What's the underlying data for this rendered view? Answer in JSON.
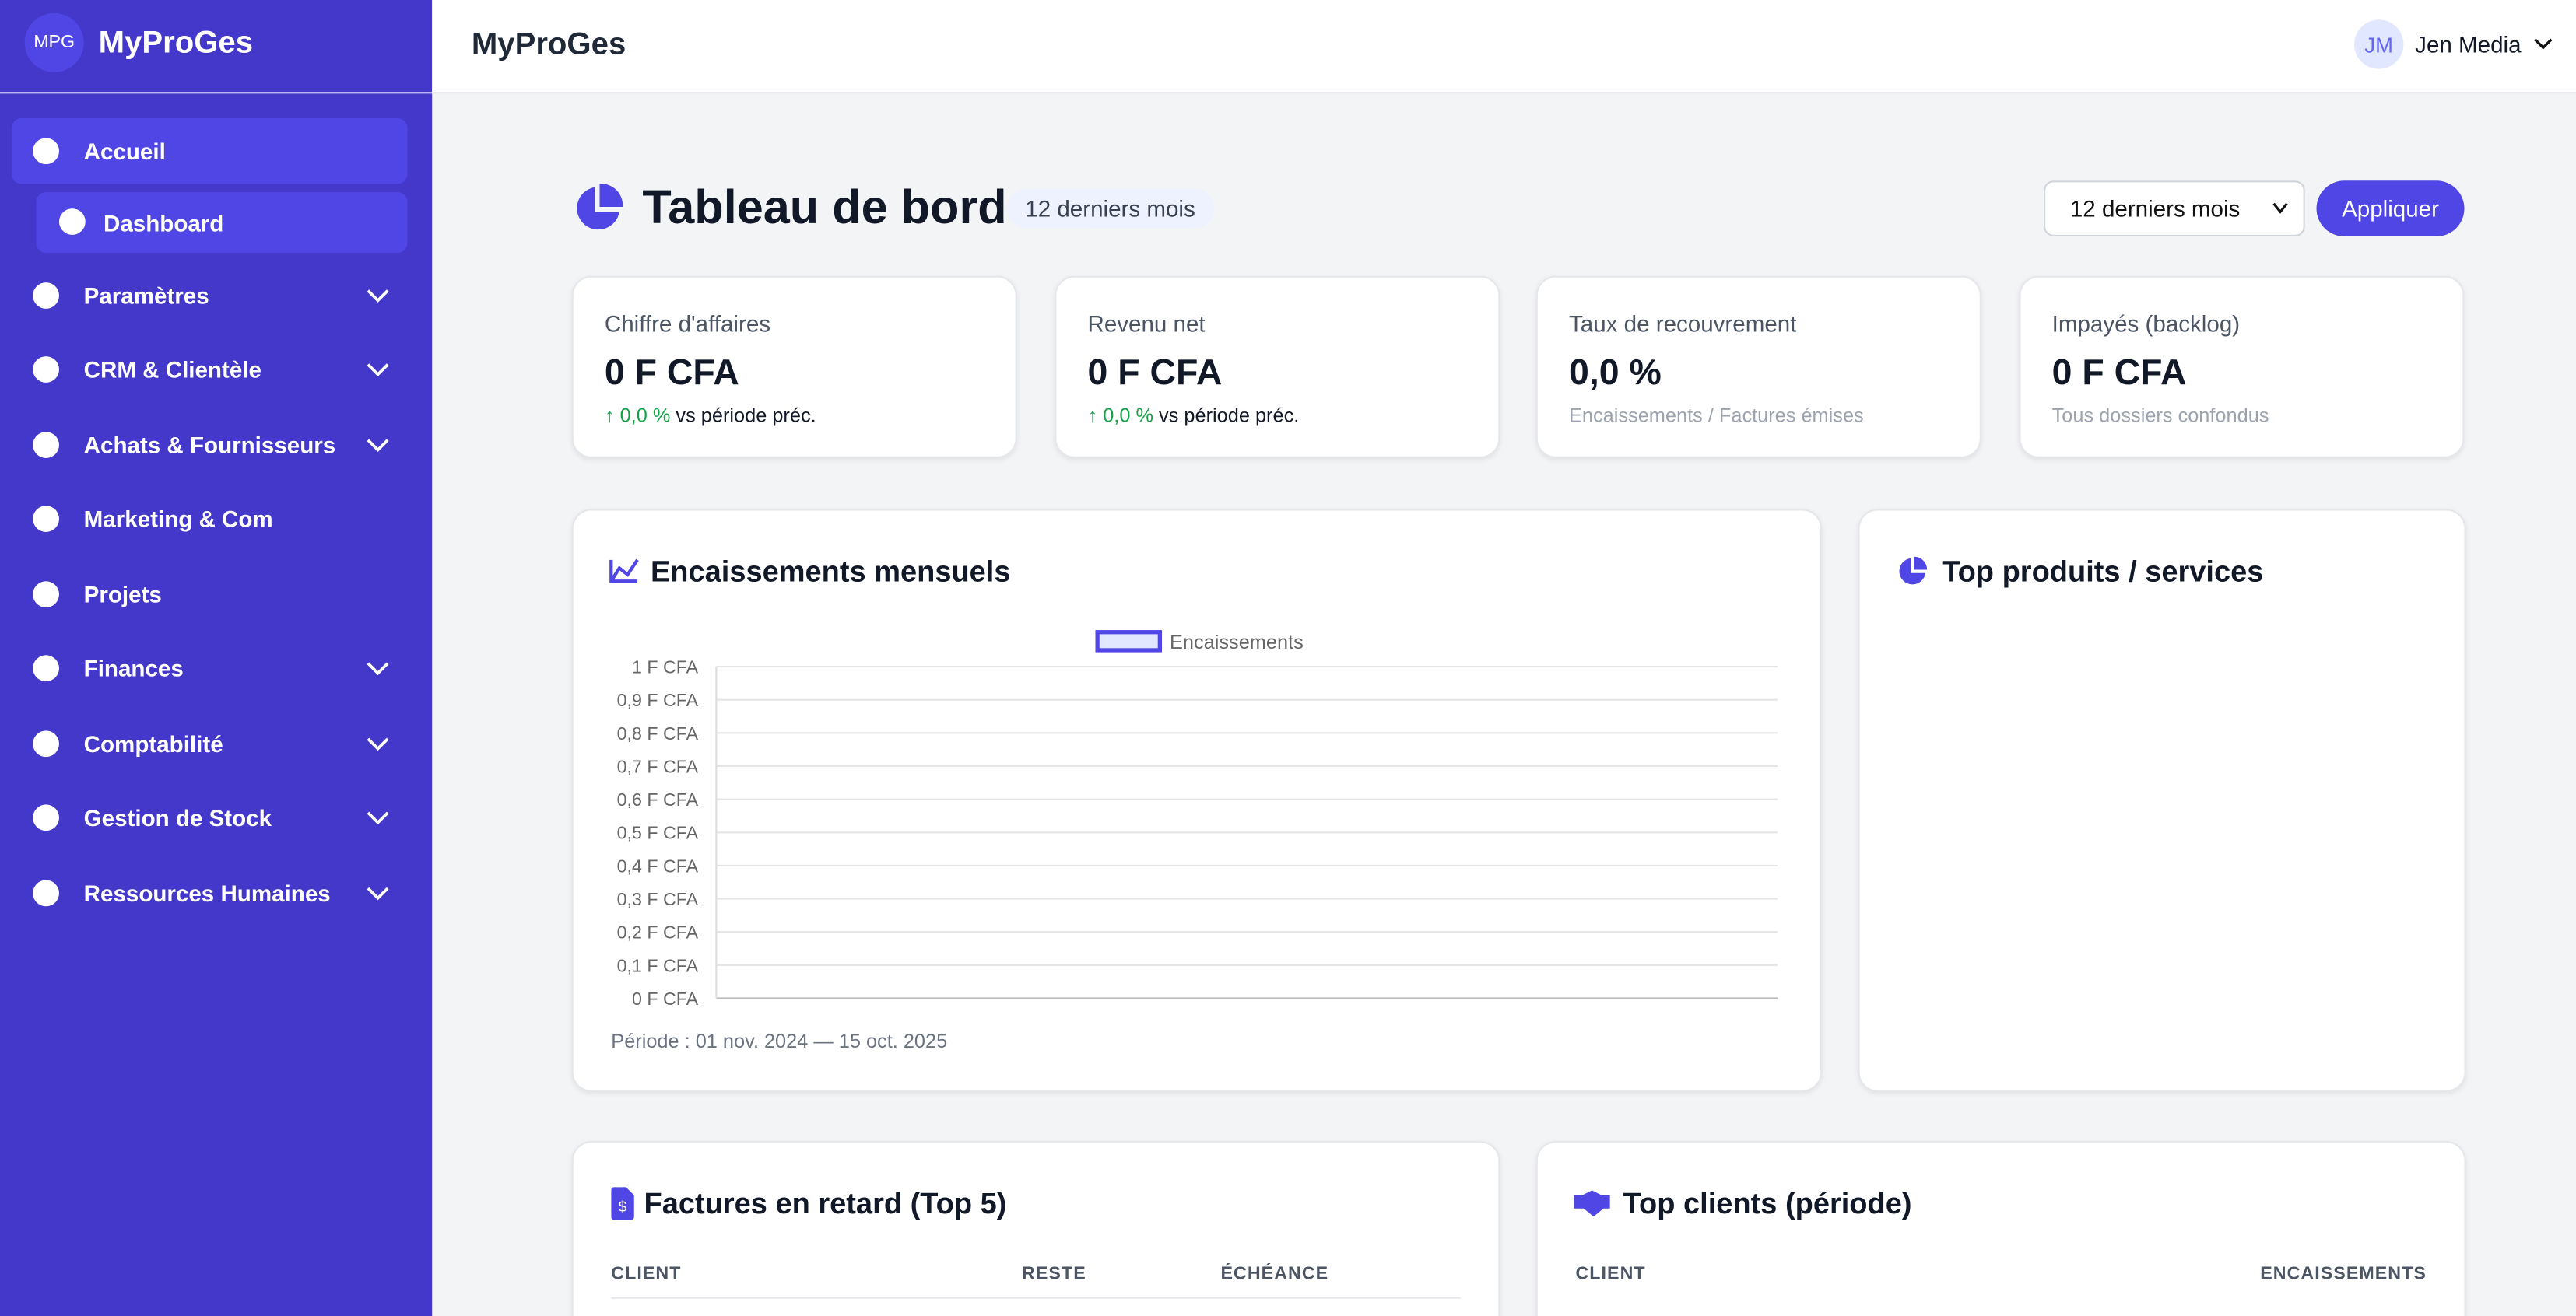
{
  "sidebar": {
    "logo": "MPG",
    "brand": "MyProGes",
    "menu": [
      {
        "label": "Accueil",
        "expandable": false
      },
      {
        "label": "Dashboard",
        "expandable": false
      },
      {
        "label": "Paramètres",
        "expandable": true
      },
      {
        "label": "CRM & Clientèle",
        "expandable": true
      },
      {
        "label": "Achats & Fournisseurs",
        "expandable": true
      },
      {
        "label": "Marketing & Com",
        "expandable": false
      },
      {
        "label": "Projets",
        "expandable": false
      },
      {
        "label": "Finances",
        "expandable": true
      },
      {
        "label": "Comptabilité",
        "expandable": true
      },
      {
        "label": "Gestion de Stock",
        "expandable": true
      },
      {
        "label": "Ressources Humaines",
        "expandable": true
      }
    ]
  },
  "topbar": {
    "title": "MyProGes",
    "avatar": "JM",
    "user": "Jen Media"
  },
  "header": {
    "title": "Tableau de bord",
    "badge": "12 derniers mois",
    "select": "12 derniers mois",
    "button": "Appliquer"
  },
  "kpis": [
    {
      "label": "Chiffre d'affaires",
      "value": "0 F CFA",
      "delta": "0,0 %",
      "note": "vs période préc."
    },
    {
      "label": "Revenu net",
      "value": "0 F CFA",
      "delta": "0,0 %",
      "note": "vs période préc."
    },
    {
      "label": "Taux de recouvrement",
      "value": "0,0 %",
      "note": "Encaissements / Factures émises"
    },
    {
      "label": "Impayés (backlog)",
      "value": "0 F CFA",
      "note": "Tous dossiers confondus"
    }
  ],
  "chart_data": {
    "type": "line",
    "title": "Encaissements mensuels",
    "series": [
      {
        "name": "Encaissements",
        "color": "#4f46e5"
      }
    ],
    "ylim": [
      0,
      1
    ],
    "yticks": [
      {
        "value": 0,
        "label": "0 F CFA"
      },
      {
        "value": 0.1,
        "label": "0,1 F CFA"
      },
      {
        "value": 0.2,
        "label": "0,2 F CFA"
      },
      {
        "value": 0.3,
        "label": "0,3 F CFA"
      },
      {
        "value": 0.4,
        "label": "0,4 F CFA"
      },
      {
        "value": 0.5,
        "label": "0,5 F CFA"
      },
      {
        "value": 0.6,
        "label": "0,6 F CFA"
      },
      {
        "value": 0.7,
        "label": "0,7 F CFA"
      },
      {
        "value": 0.8,
        "label": "0,8 F CFA"
      },
      {
        "value": 0.9,
        "label": "0,9 F CFA"
      },
      {
        "value": 1,
        "label": "1 F CFA"
      }
    ],
    "grid": true,
    "footer": "Période : 01 nov. 2024 — 15 oct. 2025"
  },
  "top_products": {
    "title": "Top produits / services"
  },
  "late_invoices": {
    "title": "Factures en retard (Top 5)",
    "columns": [
      "CLIENT",
      "RESTE",
      "ÉCHÉANCE"
    ]
  },
  "top_clients": {
    "title": "Top clients (période)",
    "columns": [
      "CLIENT",
      "ENCAISSEMENTS"
    ]
  }
}
